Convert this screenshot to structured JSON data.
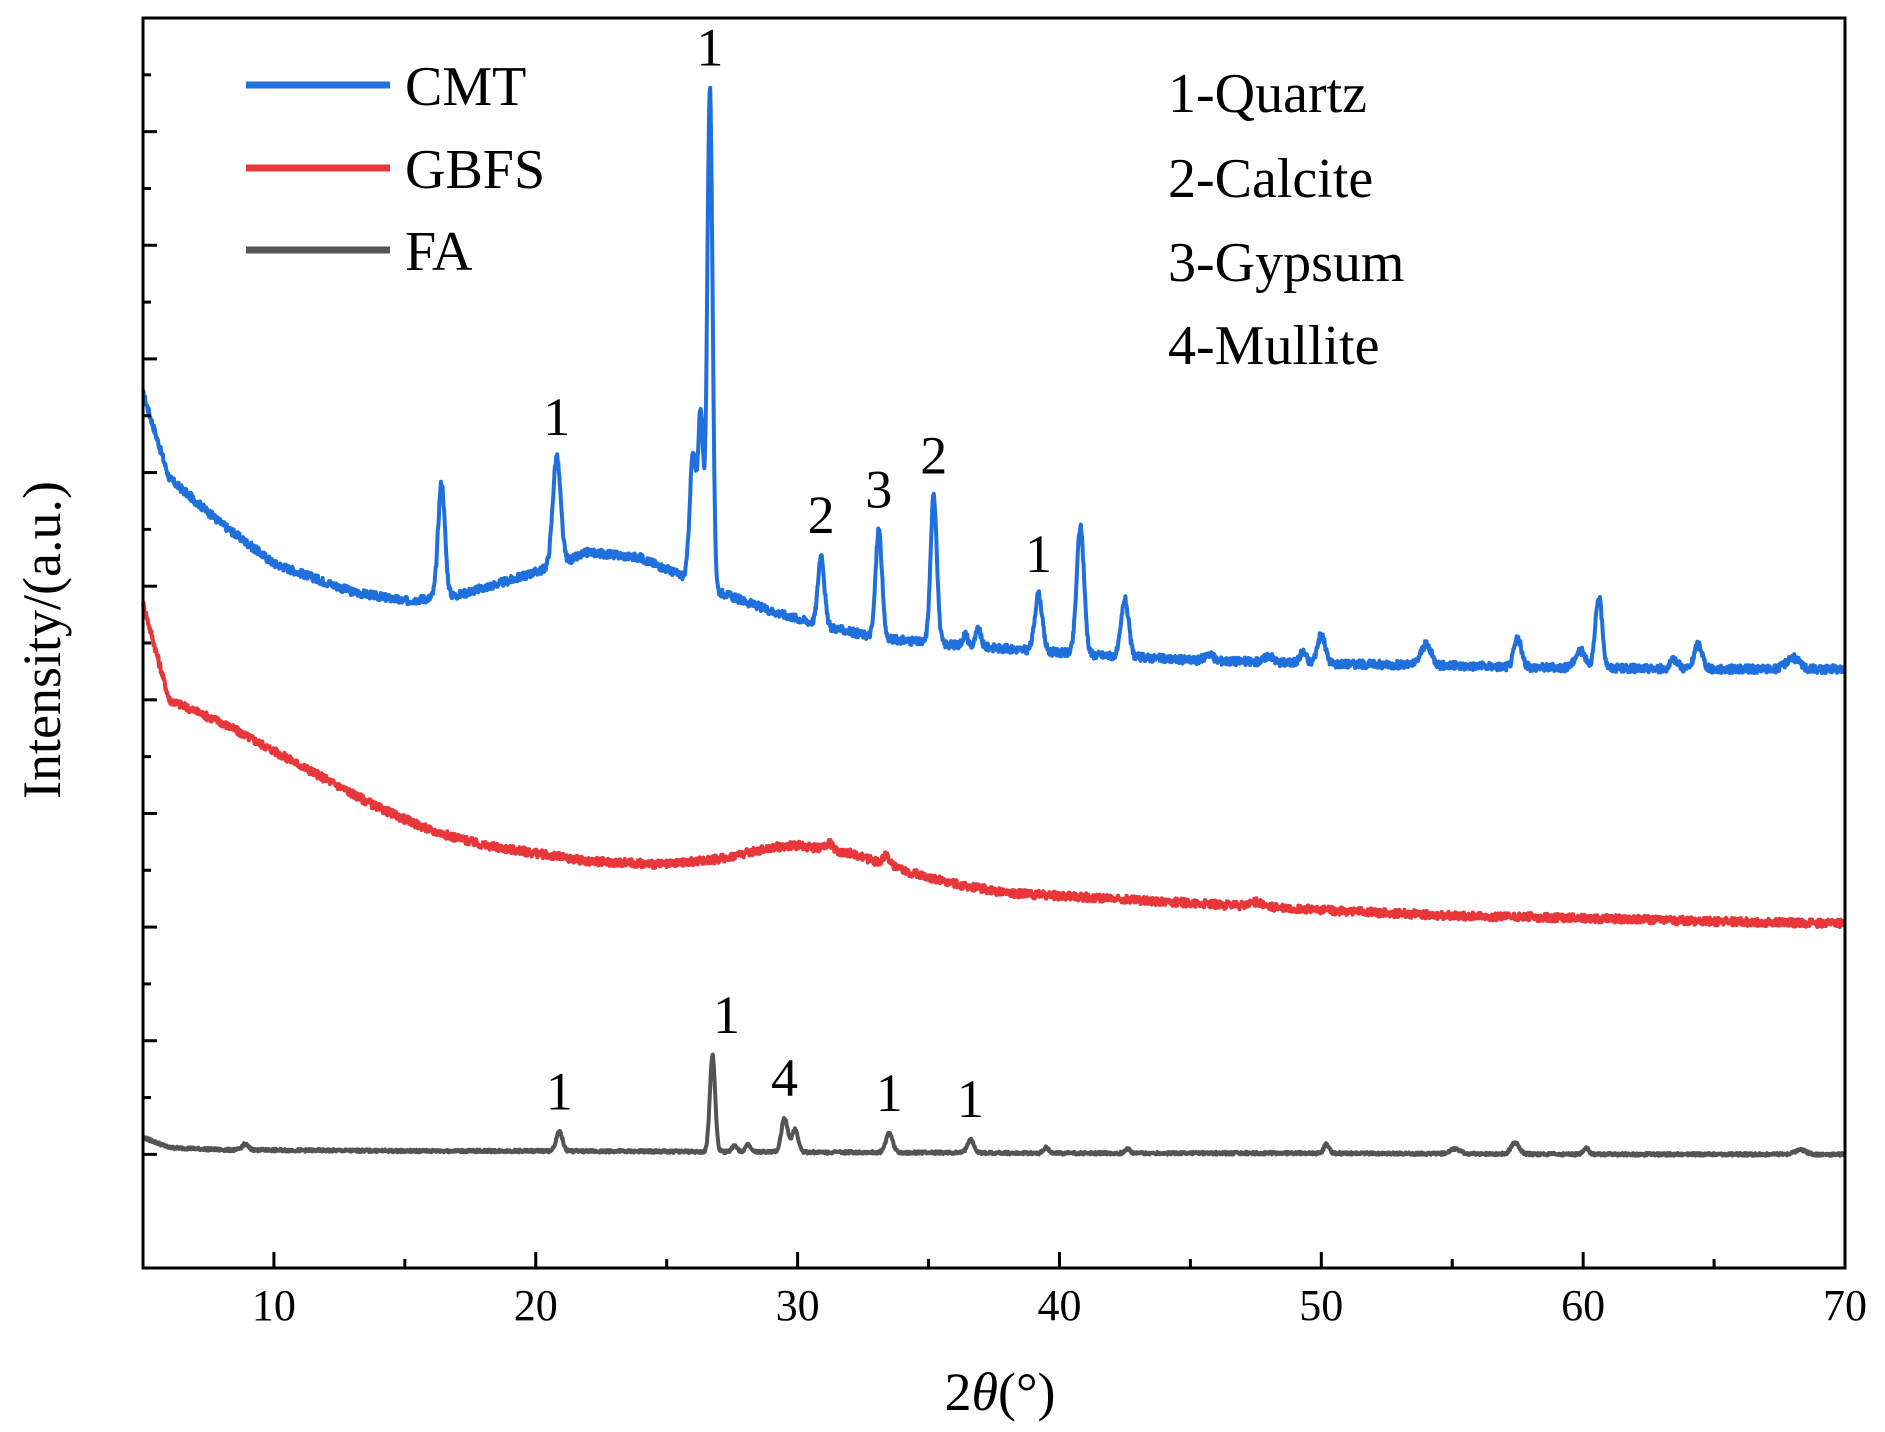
{
  "chart_data": {
    "type": "line",
    "title": "",
    "xlabel_prefix": "2",
    "xlabel_symbol": "θ",
    "xlabel_suffix": "(°)",
    "ylabel": "Intensity/(a.u.)",
    "xlim": [
      5,
      70
    ],
    "ylim": [
      -1.0,
      10.0
    ],
    "x_ticks": [
      10,
      20,
      30,
      40,
      50,
      60,
      70
    ],
    "y_ticks": [
      0,
      1,
      2,
      3,
      4,
      5,
      6,
      7,
      8,
      9
    ],
    "phase_legend": [
      "1-Quartz",
      "2-Calcite",
      "3-Gypsum",
      "4-Mullite"
    ],
    "series": [
      {
        "name": "CMT",
        "color": "#1f6fdc",
        "baseline": [
          [
            5,
            6.7
          ],
          [
            6,
            5.95
          ],
          [
            8,
            5.55
          ],
          [
            10,
            5.2
          ],
          [
            13,
            4.95
          ],
          [
            15,
            4.87
          ],
          [
            17,
            4.92
          ],
          [
            19,
            5.05
          ],
          [
            21,
            5.2
          ],
          [
            22,
            5.3
          ],
          [
            24,
            5.25
          ],
          [
            25.5,
            5.1
          ],
          [
            27,
            4.95
          ],
          [
            29,
            4.78
          ],
          [
            31,
            4.65
          ],
          [
            33,
            4.55
          ],
          [
            35,
            4.5
          ],
          [
            38,
            4.45
          ],
          [
            41,
            4.4
          ],
          [
            45,
            4.35
          ],
          [
            50,
            4.32
          ],
          [
            55,
            4.3
          ],
          [
            60,
            4.28
          ],
          [
            65,
            4.27
          ],
          [
            70,
            4.27
          ]
        ],
        "peaks": [
          [
            16.4,
            1.0,
            0.13
          ],
          [
            20.8,
            0.95,
            0.15
          ],
          [
            26.0,
            1.1,
            0.12
          ],
          [
            26.3,
            1.5,
            0.1
          ],
          [
            26.65,
            4.4,
            0.1
          ],
          [
            30.9,
            0.62,
            0.12
          ],
          [
            33.1,
            0.95,
            0.12
          ],
          [
            35.2,
            1.3,
            0.12
          ],
          [
            36.4,
            0.1,
            0.1
          ],
          [
            36.9,
            0.15,
            0.1
          ],
          [
            39.2,
            0.5,
            0.14
          ],
          [
            40.8,
            1.12,
            0.14
          ],
          [
            42.5,
            0.5,
            0.14
          ],
          [
            45.7,
            0.06,
            0.15
          ],
          [
            48.0,
            0.06,
            0.15
          ],
          [
            49.3,
            0.1,
            0.12
          ],
          [
            50.0,
            0.25,
            0.15
          ],
          [
            54.0,
            0.18,
            0.2
          ],
          [
            57.5,
            0.25,
            0.14
          ],
          [
            59.9,
            0.15,
            0.2
          ],
          [
            60.6,
            0.62,
            0.13
          ],
          [
            63.5,
            0.08,
            0.15
          ],
          [
            64.4,
            0.22,
            0.15
          ],
          [
            68.0,
            0.1,
            0.25
          ]
        ],
        "label_x": [
          20.8,
          26.65,
          30.9,
          33.1,
          35.2,
          39.2
        ],
        "labels": [
          "1",
          "1",
          "2",
          "3",
          "2",
          "1"
        ]
      },
      {
        "name": "GBFS",
        "color": "#e8373a",
        "baseline": [
          [
            5,
            4.85
          ],
          [
            6,
            4.0
          ],
          [
            8,
            3.8
          ],
          [
            10,
            3.55
          ],
          [
            12,
            3.3
          ],
          [
            14,
            3.05
          ],
          [
            16,
            2.85
          ],
          [
            18,
            2.72
          ],
          [
            20,
            2.65
          ],
          [
            22,
            2.58
          ],
          [
            25,
            2.55
          ],
          [
            27,
            2.6
          ],
          [
            29,
            2.7
          ],
          [
            30,
            2.72
          ],
          [
            32,
            2.65
          ],
          [
            34,
            2.5
          ],
          [
            36,
            2.38
          ],
          [
            38,
            2.3
          ],
          [
            42,
            2.25
          ],
          [
            46,
            2.2
          ],
          [
            50,
            2.15
          ],
          [
            55,
            2.1
          ],
          [
            60,
            2.08
          ],
          [
            65,
            2.05
          ],
          [
            70,
            2.03
          ]
        ],
        "peaks": [
          [
            31.2,
            0.06,
            0.15
          ],
          [
            33.4,
            0.08,
            0.15
          ],
          [
            47.5,
            0.04,
            0.2
          ]
        ]
      },
      {
        "name": "FA",
        "color": "#545454",
        "baseline": [
          [
            5,
            0.15
          ],
          [
            6,
            0.06
          ],
          [
            8,
            0.04
          ],
          [
            15,
            0.03
          ],
          [
            20,
            0.03
          ],
          [
            30,
            0.02
          ],
          [
            40,
            0.01
          ],
          [
            50,
            0.01
          ],
          [
            60,
            0.0
          ],
          [
            70,
            0.0
          ]
        ],
        "peaks": [
          [
            8.9,
            0.05,
            0.12
          ],
          [
            20.9,
            0.17,
            0.12
          ],
          [
            26.75,
            0.85,
            0.1
          ],
          [
            27.6,
            0.06,
            0.1
          ],
          [
            28.1,
            0.06,
            0.1
          ],
          [
            29.5,
            0.3,
            0.12
          ],
          [
            29.9,
            0.2,
            0.12
          ],
          [
            33.5,
            0.17,
            0.13
          ],
          [
            36.6,
            0.12,
            0.12
          ],
          [
            39.5,
            0.05,
            0.1
          ],
          [
            42.6,
            0.04,
            0.1
          ],
          [
            50.2,
            0.08,
            0.1
          ],
          [
            55.1,
            0.04,
            0.2
          ],
          [
            57.4,
            0.1,
            0.15
          ],
          [
            60.1,
            0.06,
            0.1
          ],
          [
            68.3,
            0.04,
            0.2
          ]
        ],
        "label_x": [
          20.9,
          26.75,
          29.5,
          33.5,
          36.6
        ],
        "labels": [
          "1",
          "1",
          "4",
          "1",
          "1"
        ]
      }
    ]
  }
}
